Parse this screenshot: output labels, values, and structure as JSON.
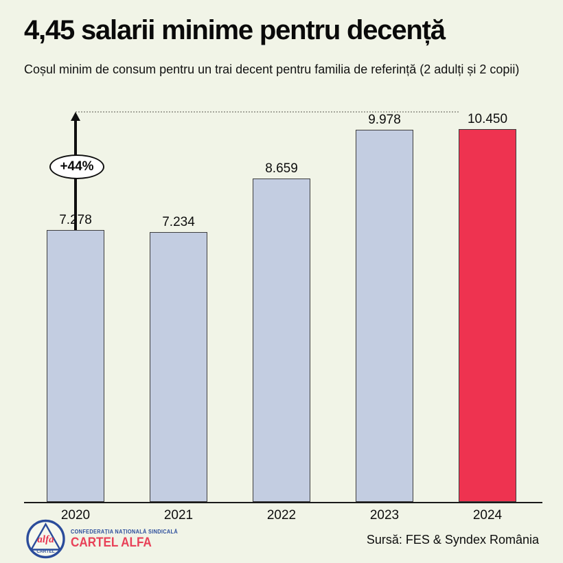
{
  "header": {
    "title": "4,45 salarii minime pentru decență",
    "subtitle": "Coșul minim de consum pentru un trai decent pentru familia de referință (2 adulți și 2 copii)"
  },
  "chart_data": {
    "type": "bar",
    "title": "4,45 salarii minime pentru decență",
    "subtitle": "Coșul minim de consum pentru un trai decent pentru familia de referință (2 adulți și 2 copii)",
    "categories": [
      "2020",
      "2021",
      "2022",
      "2023",
      "2024"
    ],
    "values": [
      7278,
      7234,
      8659,
      9978,
      10450
    ],
    "value_labels": [
      "7.278",
      "7.234",
      "8.659",
      "9.978",
      "10.450"
    ],
    "highlight_index": 4,
    "xlabel": "",
    "ylabel": "",
    "ylim": [
      0,
      10450
    ],
    "grid": false,
    "legend": "none",
    "annotation": {
      "label": "+44%",
      "from_category": "2020",
      "to_category": "2024"
    },
    "colors": {
      "background": "#f1f4e7",
      "bar": "#c3cde1",
      "highlight_bar": "#ee3350",
      "bar_border": "#3d3d3d",
      "text": "#0d0d0d",
      "dotted_line": "#a4a59a"
    }
  },
  "footer": {
    "org_small": "CONFEDERAȚIA NAȚIONALĂ SINDICALĂ",
    "org_brand": "CARTEL ALFA",
    "logo_alfa": "alfa",
    "logo_cartel": "CARTEL",
    "source": "Sursă: FES & Syndex România",
    "logo_blue": "#2b4c9b",
    "logo_red": "#e84158"
  }
}
